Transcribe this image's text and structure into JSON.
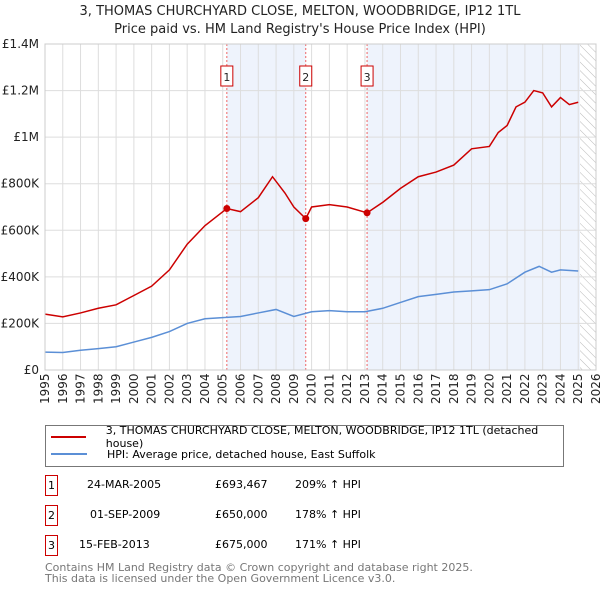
{
  "chart_data": {
    "type": "line",
    "title": "3, THOMAS CHURCHYARD CLOSE, MELTON, WOODBRIDGE, IP12 1TL",
    "subtitle": "Price paid vs. HM Land Registry's House Price Index (HPI)",
    "xlim": [
      1995,
      2026
    ],
    "ylim": [
      0,
      1400000
    ],
    "yticks": [
      {
        "v": 0,
        "label": "£0"
      },
      {
        "v": 200000,
        "label": "£200K"
      },
      {
        "v": 400000,
        "label": "£400K"
      },
      {
        "v": 600000,
        "label": "£600K"
      },
      {
        "v": 800000,
        "label": "£800K"
      },
      {
        "v": 1000000,
        "label": "£1M"
      },
      {
        "v": 1200000,
        "label": "£1.2M"
      },
      {
        "v": 1400000,
        "label": "£1.4M"
      }
    ],
    "xticks": [
      "1995",
      "1996",
      "1997",
      "1998",
      "1999",
      "2000",
      "2001",
      "2002",
      "2003",
      "2004",
      "2005",
      "2006",
      "2007",
      "2008",
      "2009",
      "2010",
      "2011",
      "2012",
      "2013",
      "2014",
      "2015",
      "2016",
      "2017",
      "2018",
      "2019",
      "2020",
      "2021",
      "2022",
      "2023",
      "2024",
      "2025",
      "2026"
    ],
    "series": [
      {
        "name": "3, THOMAS CHURCHYARD CLOSE, MELTON, WOODBRIDGE, IP12 1TL (detached house)",
        "color": "#cc0000",
        "x": [
          1995,
          1996,
          1997,
          1998,
          1999,
          2000,
          2001,
          2002,
          2003,
          2004,
          2005.23,
          2006,
          2007,
          2007.8,
          2008.5,
          2009,
          2009.67,
          2010,
          2011,
          2012,
          2013.12,
          2014,
          2015,
          2016,
          2017,
          2018,
          2019,
          2020,
          2020.5,
          2021,
          2021.5,
          2022,
          2022.5,
          2023,
          2023.5,
          2024,
          2024.5,
          2025
        ],
        "y": [
          240000,
          228000,
          245000,
          265000,
          280000,
          320000,
          360000,
          430000,
          540000,
          620000,
          693467,
          680000,
          740000,
          830000,
          760000,
          700000,
          650000,
          700000,
          710000,
          700000,
          675000,
          720000,
          780000,
          830000,
          850000,
          880000,
          950000,
          960000,
          1020000,
          1050000,
          1130000,
          1150000,
          1200000,
          1190000,
          1130000,
          1170000,
          1140000,
          1150000
        ]
      },
      {
        "name": "HPI: Average price, detached house, East Suffolk",
        "color": "#5b8fd6",
        "x": [
          1995,
          1996,
          1997,
          1998,
          1999,
          2000,
          2001,
          2002,
          2003,
          2004,
          2005,
          2006,
          2007,
          2008,
          2009,
          2010,
          2011,
          2012,
          2013,
          2014,
          2015,
          2016,
          2017,
          2018,
          2019,
          2020,
          2021,
          2022,
          2022.8,
          2023.5,
          2024,
          2025
        ],
        "y": [
          77000,
          75000,
          85000,
          92000,
          100000,
          120000,
          140000,
          165000,
          200000,
          220000,
          225000,
          230000,
          245000,
          260000,
          230000,
          250000,
          255000,
          250000,
          250000,
          265000,
          290000,
          315000,
          325000,
          335000,
          340000,
          345000,
          370000,
          420000,
          445000,
          420000,
          430000,
          425000
        ]
      }
    ],
    "sales": [
      {
        "label": "1",
        "x": 2005.23,
        "y": 693467,
        "date": "24-MAR-2005",
        "price": "£693,467",
        "hpi": "209% ↑ HPI"
      },
      {
        "label": "2",
        "x": 2009.67,
        "y": 650000,
        "date": "01-SEP-2009",
        "price": "£650,000",
        "hpi": "178% ↑ HPI"
      },
      {
        "label": "3",
        "x": 2013.12,
        "y": 675000,
        "date": "15-FEB-2013",
        "price": "£675,000",
        "hpi": "171% ↑ HPI"
      }
    ],
    "forecast_start": 2025.1
  },
  "footer": [
    "Contains HM Land Registry data © Crown copyright and database right 2025.",
    "This data is licensed under the Open Government Licence v3.0."
  ]
}
